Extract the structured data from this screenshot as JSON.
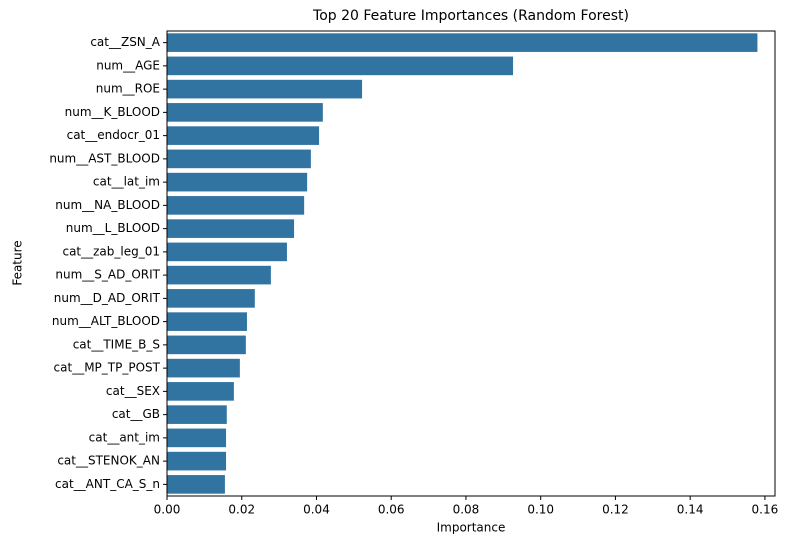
{
  "chart_data": {
    "type": "barh",
    "title": "Top 20 Feature Importances (Random Forest)",
    "x_label": "Importance",
    "y_label": "Feature",
    "categories": [
      "cat__ZSN_A",
      "num__AGE",
      "num__ROE",
      "num__K_BLOOD",
      "cat__endocr_01",
      "num__AST_BLOOD",
      "cat__lat_im",
      "num__NA_BLOOD",
      "num__L_BLOOD",
      "cat__zab_leg_01",
      "num__S_AD_ORIT",
      "num__D_AD_ORIT",
      "num__ALT_BLOOD",
      "cat__TIME_B_S",
      "cat__MP_TP_POST",
      "cat__SEX",
      "cat__GB",
      "cat__ant_im",
      "cat__STENOK_AN",
      "cat__ANT_CA_S_n"
    ],
    "values": [
      0.158,
      0.0926,
      0.0522,
      0.0417,
      0.0407,
      0.0385,
      0.0375,
      0.0367,
      0.034,
      0.0321,
      0.0278,
      0.0235,
      0.0214,
      0.0211,
      0.0195,
      0.0179,
      0.016,
      0.0158,
      0.0158,
      0.0155
    ],
    "color": "#3274a1",
    "xlim": [
      0,
      0.1627
    ],
    "xticks": [
      {
        "value": 0,
        "label": "0.00"
      },
      {
        "value": 0.02,
        "label": "0.02"
      },
      {
        "value": 0.04,
        "label": "0.04"
      },
      {
        "value": 0.06,
        "label": "0.06"
      },
      {
        "value": 0.08,
        "label": "0.08"
      },
      {
        "value": 0.1,
        "label": "0.10"
      },
      {
        "value": 0.12,
        "label": "0.12"
      },
      {
        "value": 0.14,
        "label": "0.14"
      },
      {
        "value": 0.16,
        "label": "0.16"
      }
    ],
    "grid": false
  }
}
